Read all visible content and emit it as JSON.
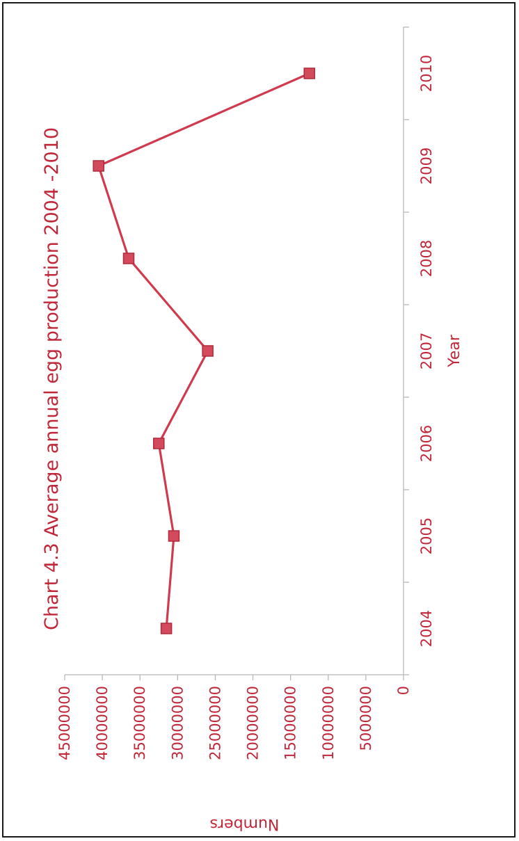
{
  "chart_data": {
    "type": "line",
    "title": "Chart 4.3  Average annual egg production 2004 -2010",
    "xlabel": "Year",
    "ylabel": "Numbers",
    "categories": [
      "2004",
      "2005",
      "2006",
      "2007",
      "2008",
      "2009",
      "2010"
    ],
    "series": [
      {
        "values": [
          31500000,
          30500000,
          32500000,
          26000000,
          36500000,
          40500000,
          12500000
        ]
      }
    ],
    "ylim": [
      0,
      45000000
    ],
    "y_ticks": [
      "0",
      "5000000",
      "10000000",
      "15000000",
      "20000000",
      "25000000",
      "30000000",
      "35000000",
      "40000000",
      "45000000"
    ],
    "grid": false,
    "legend": "none",
    "rotation": "page rotated 90 degrees counter-clockwise",
    "colors": {
      "series": "#d03a4e",
      "text": "#c0283a",
      "axis": "#b8b8b8"
    }
  }
}
